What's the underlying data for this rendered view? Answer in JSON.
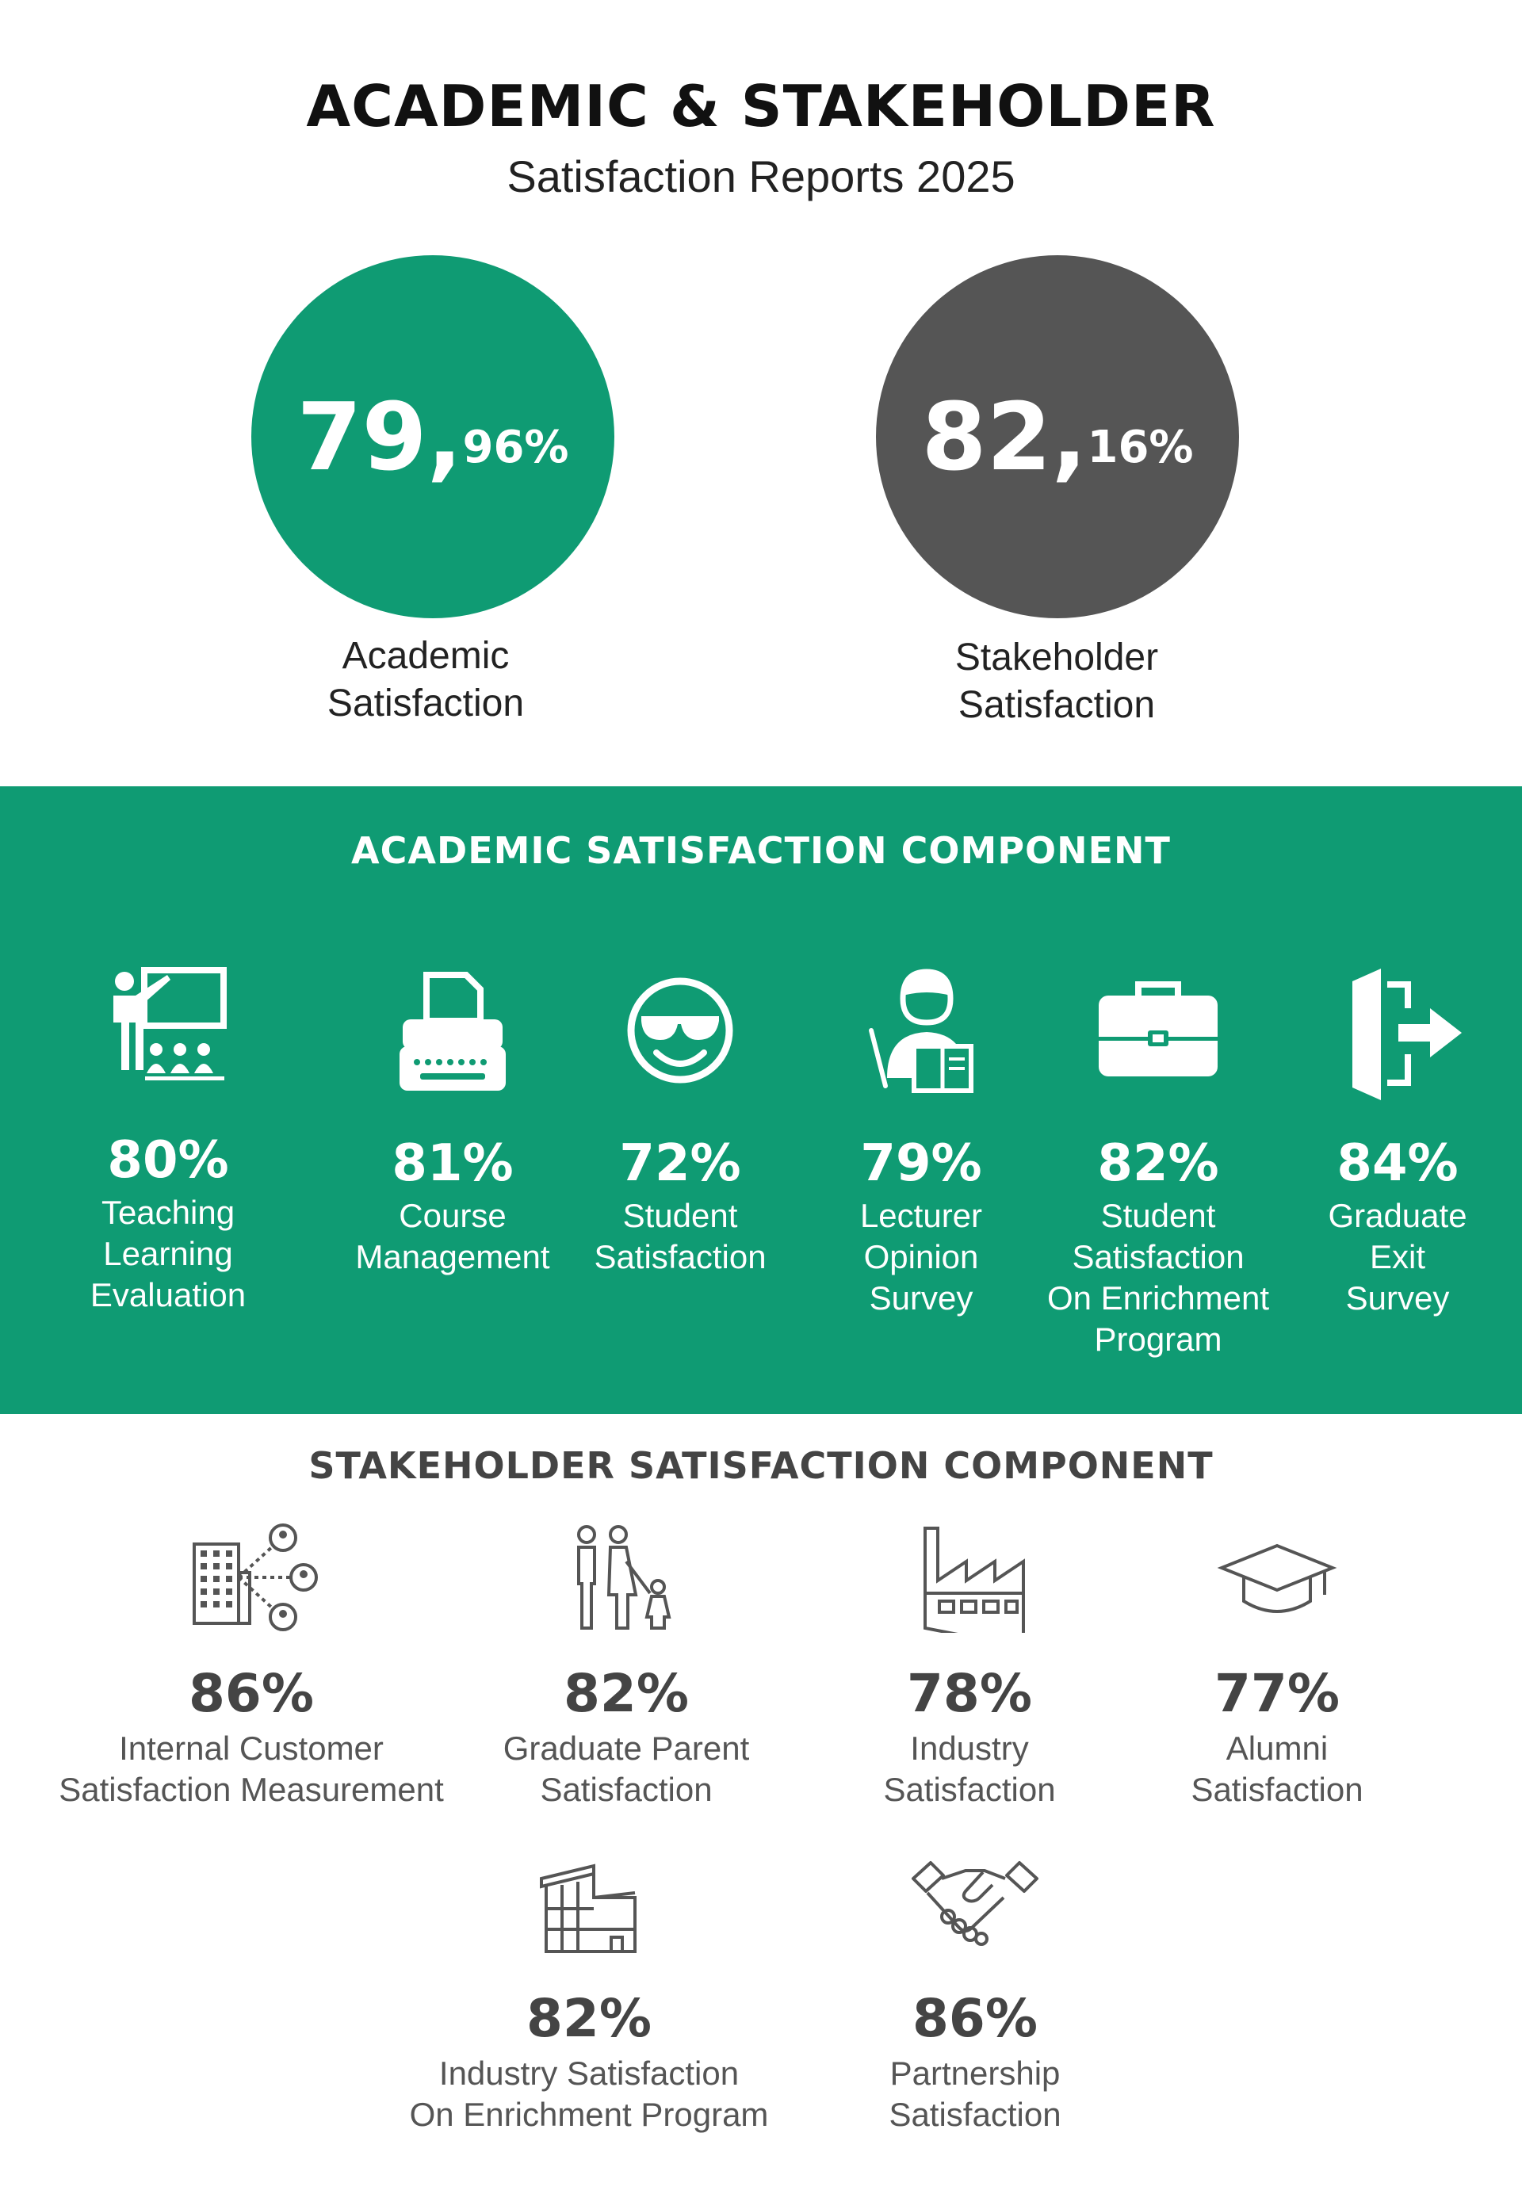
{
  "header": {
    "title": "ACADEMIC & STAKEHOLDER",
    "subtitle": "Satisfaction Reports 2025"
  },
  "summary": {
    "academic": {
      "whole": "79,",
      "decimal": "96%",
      "label_line1": "Academic",
      "label_line2": "Satisfaction",
      "color": "#0f9b73"
    },
    "stakeholder": {
      "whole": "82,",
      "decimal": "16%",
      "label_line1": "Stakeholder",
      "label_line2": "Satisfaction",
      "color": "#555555"
    }
  },
  "academic_section": {
    "title": "ACADEMIC SATISFACTION COMPONENT",
    "background": "#0f9b73",
    "items": [
      {
        "icon": "teacher-presentation-icon",
        "percent": "80%",
        "label_lines": [
          "Teaching",
          "Learning Evaluation"
        ]
      },
      {
        "icon": "typewriter-icon",
        "percent": "81%",
        "label_lines": [
          "Course",
          "Management"
        ]
      },
      {
        "icon": "smiley-sunglasses-icon",
        "percent": "72%",
        "label_lines": [
          "Student",
          "Satisfaction"
        ]
      },
      {
        "icon": "lecturer-icon",
        "percent": "79%",
        "label_lines": [
          "Lecturer Opinion",
          "Survey"
        ]
      },
      {
        "icon": "briefcase-icon",
        "percent": "82%",
        "label_lines": [
          "Student",
          "Satisfaction",
          "On Enrichment",
          "Program"
        ]
      },
      {
        "icon": "exit-door-icon",
        "percent": "84%",
        "label_lines": [
          "Graduate",
          "Exit",
          "Survey"
        ]
      }
    ]
  },
  "stakeholder_section": {
    "title": "STAKEHOLDER SATISFACTION COMPONENT",
    "items": [
      {
        "icon": "building-network-icon",
        "percent": "86%",
        "label_lines": [
          "Internal Customer",
          "Satisfaction Measurement"
        ]
      },
      {
        "icon": "family-icon",
        "percent": "82%",
        "label_lines": [
          "Graduate Parent",
          "Satisfaction"
        ]
      },
      {
        "icon": "factory-icon",
        "percent": "78%",
        "label_lines": [
          "Industry",
          "Satisfaction"
        ]
      },
      {
        "icon": "graduation-cap-icon",
        "percent": "77%",
        "label_lines": [
          "Alumni",
          "Satisfaction"
        ]
      },
      {
        "icon": "industrial-building-icon",
        "percent": "82%",
        "label_lines": [
          "Industry Satisfaction",
          "On Enrichment Program"
        ]
      },
      {
        "icon": "handshake-icon",
        "percent": "86%",
        "label_lines": [
          "Partnership",
          "Satisfaction"
        ]
      }
    ]
  }
}
